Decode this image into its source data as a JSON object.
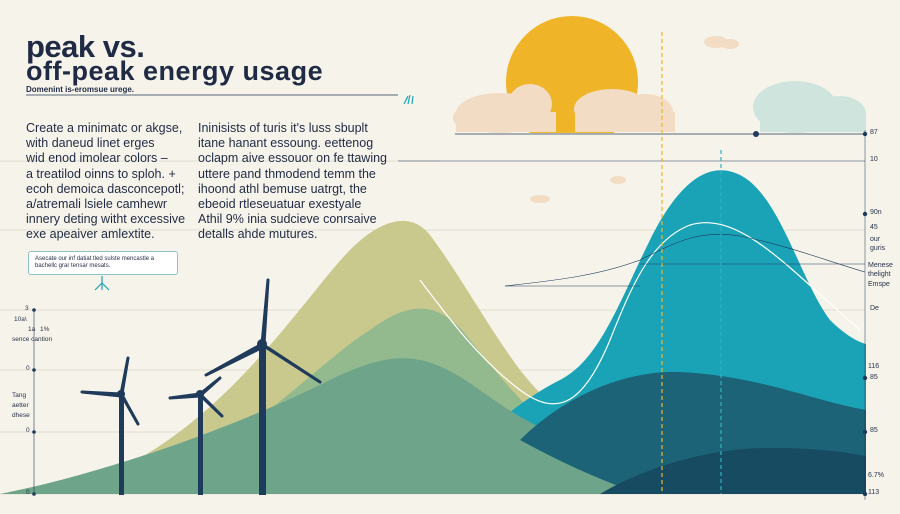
{
  "title_line1": "peak vs.",
  "title_line2": "off-peak energy usage",
  "subtitle": "Domenint is-eromsue urege.",
  "left_paragraph": [
    "Create a minimatc or akgse,",
    "with daneud linet erges",
    "wid enod imolear colors –",
    "a treatilod oinns to sploh. +",
    "ecoh demoica dasconcepotl;",
    "a/atremali lsiele camhewr",
    "innery deting witht excessive",
    "exe apeaiver amlextite."
  ],
  "right_paragraph": [
    "Ininisists of turis it's luss sbuplt",
    "itane hanant essoung. eettenog",
    "oclapm aive essouor on fe ttawing",
    "uttere pand thmodend temm the",
    "ihoond athl bemuse uatrgt, the",
    "ebeoid rtleseuatuar exestyale",
    "Athil 9% inia sudcieve conrsaive",
    "detalls ahde mutures."
  ],
  "callout_text": [
    "Asecate our inf datiat tled sulste mencastle a",
    "bachellc grar tensar mesats."
  ],
  "left_axis": {
    "top": "3",
    "series_label_a": "10a\\",
    "series_label_b": "1a",
    "series_label_c": "1%",
    "caption": "sence cantion",
    "mid_top": "0",
    "side_label": [
      "Tang",
      "aetter",
      "dhese"
    ],
    "mid_bottom": "0",
    "bottom": "0"
  },
  "right_axis": [
    "87",
    "10",
    "90n",
    "45",
    "our",
    "guris",
    "Menese",
    "thelight",
    "Emspe",
    "De",
    "116",
    "85",
    "85",
    "6.7%",
    "113"
  ],
  "colors": {
    "background": "#f6f3ea",
    "navy": "#1f3a5a",
    "sun": "#f0b429",
    "olive": "#c9c98d",
    "sage": "#93b98f",
    "green_hill": "#6ea58a",
    "teal": "#1aa3b7",
    "deep_teal": "#1d6377",
    "dark_teal": "#174b62",
    "cloud": "#f2dcc3",
    "cloud_teal": "#cfe4dc",
    "guide": "#2fb3c4"
  }
}
